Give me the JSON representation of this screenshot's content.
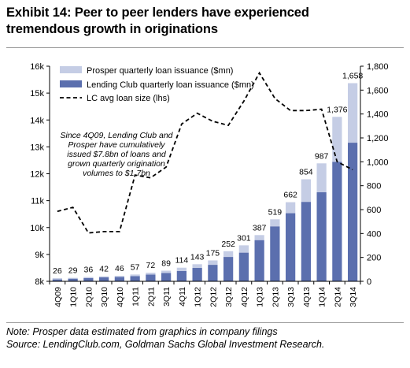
{
  "exhibit": {
    "title_line1": "Exhibit 14: Peer to peer lenders have experienced",
    "title_line2": "tremendous growth in originations"
  },
  "annotation": [
    "Since 4Q09, Lending Club and",
    "Prosper have cumulatively",
    "issued $7.8bn of loans and",
    "grown quarterly origination",
    "volumes to $1.7bn"
  ],
  "footnote": {
    "note": "Note: Prosper data estimated from graphics in company filings",
    "source": "Source: LendingClub.com, Goldman Sachs Global Investment Research."
  },
  "colors": {
    "prosper": "#c5cde5",
    "lending_club": "#5b6fae",
    "line": "#000000",
    "axis": "#000000"
  },
  "chart_data": {
    "type": "bar",
    "categories": [
      "4Q09",
      "1Q10",
      "2Q10",
      "3Q10",
      "4Q10",
      "1Q11",
      "2Q11",
      "3Q11",
      "4Q11",
      "1Q12",
      "2Q12",
      "3Q12",
      "4Q12",
      "1Q13",
      "2Q13",
      "3Q13",
      "4Q13",
      "1Q14",
      "2Q14",
      "3Q14"
    ],
    "series": [
      {
        "name": "Lending Club quarterly loan issuance ($mn)",
        "type": "bar",
        "stack": "issuance",
        "axis": "right",
        "values": [
          16,
          22,
          27,
          33,
          36,
          44,
          56,
          70,
          86,
          112,
          138,
          204,
          240,
          345,
          460,
          570,
          665,
          745,
          1000,
          1160
        ]
      },
      {
        "name": "Prosper quarterly loan issuance ($mn)",
        "type": "bar",
        "stack": "issuance",
        "axis": "right",
        "values": [
          10,
          7,
          9,
          9,
          10,
          13,
          16,
          19,
          28,
          31,
          37,
          48,
          61,
          42,
          59,
          92,
          189,
          242,
          376,
          498
        ]
      },
      {
        "name": "LC avg loan size (lhs)",
        "type": "line",
        "style": "dashed",
        "axis": "left",
        "values": [
          10600,
          10750,
          9800,
          9850,
          9850,
          11950,
          11850,
          12250,
          13850,
          14250,
          13950,
          13800,
          14700,
          15750,
          14800,
          14350,
          14350,
          14400,
          12450,
          12150
        ]
      }
    ],
    "totals": [
      "26",
      "29",
      "36",
      "42",
      "46",
      "57",
      "72",
      "89",
      "114",
      "143",
      "175",
      "252",
      "301",
      "387",
      "519",
      "662",
      "854",
      "987",
      "1,376",
      "1,658"
    ],
    "left_axis": {
      "range": [
        8000,
        16000
      ],
      "ticks": [
        8000,
        9000,
        10000,
        11000,
        12000,
        13000,
        14000,
        15000,
        16000
      ],
      "tick_labels": [
        "8k",
        "9k",
        "10k",
        "11k",
        "12k",
        "13k",
        "14k",
        "15k",
        "16k"
      ]
    },
    "right_axis": {
      "range": [
        0,
        1800
      ],
      "ticks": [
        0,
        200,
        400,
        600,
        800,
        1000,
        1200,
        1400,
        1600,
        1800
      ],
      "tick_labels": [
        "0",
        "200",
        "400",
        "600",
        "800",
        "1,000",
        "1,200",
        "1,400",
        "1,600",
        "1,800"
      ]
    },
    "grid": false,
    "legend_position": "top-left"
  }
}
